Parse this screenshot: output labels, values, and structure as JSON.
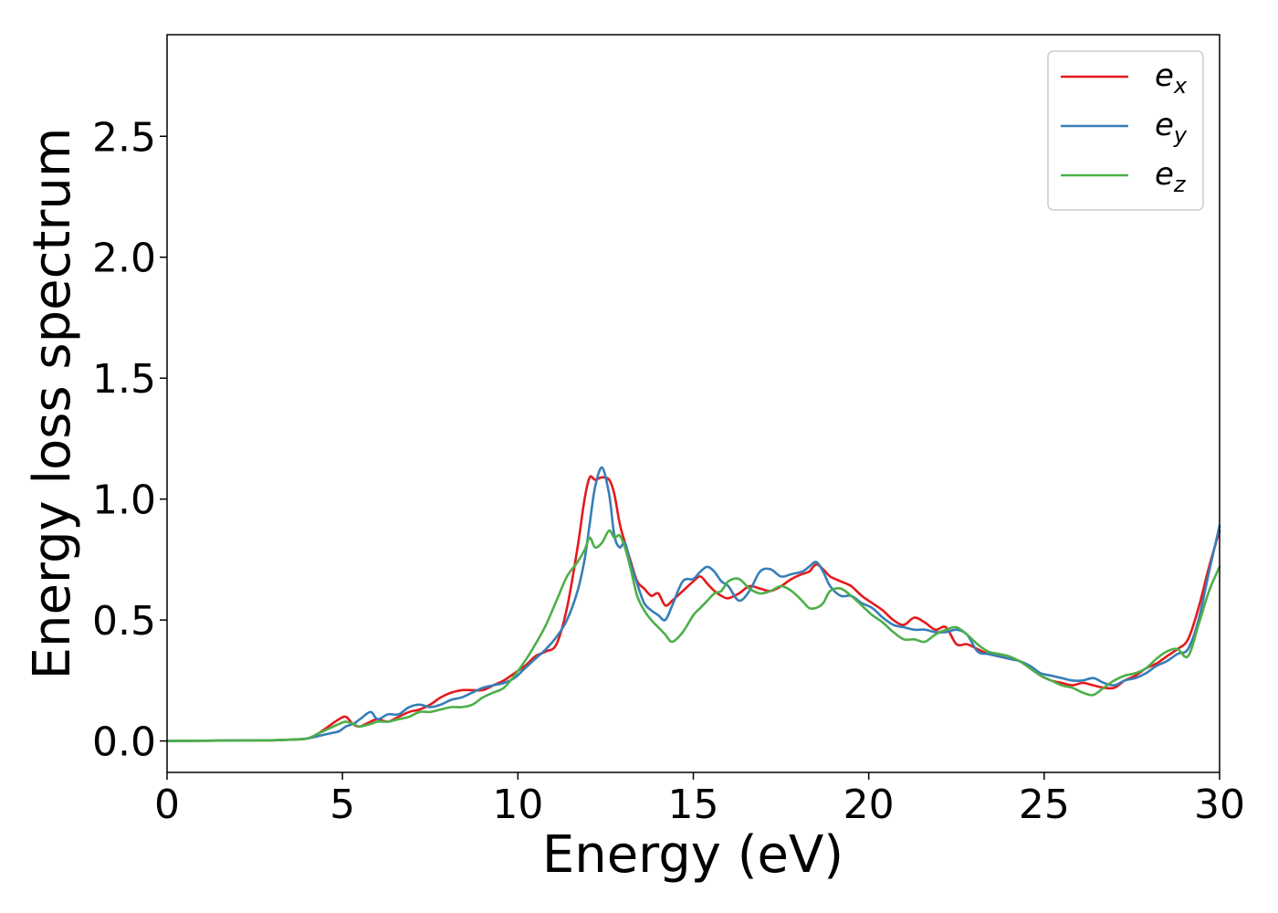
{
  "chart_data": {
    "type": "line",
    "title": "",
    "xlabel": "Energy (eV)",
    "ylabel": "Energy loss spectrum",
    "xlim": [
      0,
      30
    ],
    "ylim": [
      -0.13,
      2.92
    ],
    "xticks": [
      "0",
      "5",
      "10",
      "15",
      "20",
      "25",
      "30"
    ],
    "yticks": [
      "0.0",
      "0.5",
      "1.0",
      "1.5",
      "2.0",
      "2.5"
    ],
    "grid": false,
    "legend_position": "top-right",
    "series": [
      {
        "name": "e_x",
        "legend_base": "e",
        "legend_sub": "x",
        "color": "#e41a1c",
        "x": [
          0,
          2,
          3,
          3.5,
          4,
          4.3,
          4.6,
          4.9,
          5.1,
          5.3,
          5.5,
          5.8,
          6.0,
          6.3,
          6.6,
          6.9,
          7.2,
          7.5,
          7.8,
          8.1,
          8.4,
          8.7,
          9.0,
          9.3,
          9.6,
          9.9,
          10.2,
          10.5,
          10.8,
          11.1,
          11.4,
          11.7,
          11.9,
          12.05,
          12.2,
          12.4,
          12.6,
          12.75,
          12.9,
          13.05,
          13.2,
          13.4,
          13.6,
          13.8,
          14.0,
          14.2,
          14.4,
          14.7,
          15.0,
          15.2,
          15.4,
          15.6,
          15.8,
          16.0,
          16.3,
          16.6,
          16.9,
          17.2,
          17.5,
          17.8,
          18.1,
          18.3,
          18.5,
          18.7,
          18.9,
          19.2,
          19.5,
          19.8,
          20.1,
          20.4,
          20.7,
          21.0,
          21.3,
          21.6,
          21.9,
          22.2,
          22.5,
          22.8,
          23.1,
          23.4,
          23.7,
          24.0,
          24.3,
          24.6,
          24.9,
          25.2,
          25.5,
          25.8,
          26.1,
          26.4,
          26.7,
          27.0,
          27.3,
          27.6,
          27.9,
          28.2,
          28.5,
          28.8,
          29.1,
          29.4,
          29.7,
          30.0
        ],
        "y": [
          0.0,
          0.002,
          0.003,
          0.005,
          0.01,
          0.03,
          0.06,
          0.09,
          0.1,
          0.07,
          0.06,
          0.08,
          0.09,
          0.08,
          0.1,
          0.12,
          0.13,
          0.15,
          0.18,
          0.2,
          0.21,
          0.21,
          0.21,
          0.23,
          0.25,
          0.28,
          0.31,
          0.35,
          0.37,
          0.4,
          0.55,
          0.8,
          1.0,
          1.09,
          1.08,
          1.09,
          1.08,
          1.02,
          0.9,
          0.82,
          0.75,
          0.66,
          0.63,
          0.6,
          0.61,
          0.56,
          0.58,
          0.62,
          0.66,
          0.68,
          0.65,
          0.62,
          0.6,
          0.59,
          0.61,
          0.64,
          0.63,
          0.62,
          0.64,
          0.67,
          0.69,
          0.7,
          0.73,
          0.71,
          0.68,
          0.66,
          0.64,
          0.6,
          0.57,
          0.54,
          0.5,
          0.48,
          0.51,
          0.49,
          0.46,
          0.47,
          0.4,
          0.4,
          0.38,
          0.36,
          0.35,
          0.34,
          0.33,
          0.3,
          0.27,
          0.25,
          0.24,
          0.23,
          0.24,
          0.23,
          0.22,
          0.22,
          0.25,
          0.27,
          0.3,
          0.32,
          0.35,
          0.38,
          0.42,
          0.55,
          0.72,
          0.87
        ]
      },
      {
        "name": "e_y",
        "legend_base": "e",
        "legend_sub": "y",
        "color": "#377eb8",
        "x": [
          0,
          2,
          3,
          3.5,
          4,
          4.3,
          4.6,
          4.9,
          5.1,
          5.3,
          5.5,
          5.8,
          6.0,
          6.3,
          6.6,
          6.9,
          7.2,
          7.5,
          7.8,
          8.1,
          8.4,
          8.7,
          9.0,
          9.3,
          9.6,
          9.9,
          10.2,
          10.5,
          10.8,
          11.1,
          11.4,
          11.7,
          11.9,
          12.05,
          12.2,
          12.4,
          12.6,
          12.75,
          12.9,
          13.05,
          13.2,
          13.4,
          13.6,
          13.8,
          14.0,
          14.2,
          14.4,
          14.7,
          15.0,
          15.2,
          15.4,
          15.6,
          15.8,
          16.0,
          16.3,
          16.6,
          16.9,
          17.2,
          17.5,
          17.8,
          18.1,
          18.3,
          18.5,
          18.7,
          18.9,
          19.2,
          19.5,
          19.8,
          20.1,
          20.4,
          20.7,
          21.0,
          21.3,
          21.6,
          21.9,
          22.2,
          22.5,
          22.8,
          23.1,
          23.4,
          23.7,
          24.0,
          24.3,
          24.6,
          24.9,
          25.2,
          25.5,
          25.8,
          26.1,
          26.4,
          26.7,
          27.0,
          27.3,
          27.6,
          27.9,
          28.2,
          28.5,
          28.8,
          29.1,
          29.4,
          29.7,
          30.0
        ],
        "y": [
          0.0,
          0.002,
          0.003,
          0.005,
          0.01,
          0.02,
          0.03,
          0.04,
          0.06,
          0.07,
          0.09,
          0.12,
          0.09,
          0.11,
          0.11,
          0.14,
          0.15,
          0.14,
          0.15,
          0.17,
          0.18,
          0.2,
          0.22,
          0.23,
          0.24,
          0.26,
          0.3,
          0.34,
          0.38,
          0.43,
          0.5,
          0.62,
          0.75,
          0.9,
          1.05,
          1.13,
          1.02,
          0.85,
          0.8,
          0.82,
          0.74,
          0.65,
          0.57,
          0.54,
          0.52,
          0.5,
          0.56,
          0.66,
          0.67,
          0.7,
          0.72,
          0.7,
          0.66,
          0.64,
          0.58,
          0.62,
          0.7,
          0.71,
          0.68,
          0.69,
          0.7,
          0.72,
          0.74,
          0.7,
          0.64,
          0.6,
          0.6,
          0.57,
          0.55,
          0.51,
          0.48,
          0.47,
          0.46,
          0.46,
          0.45,
          0.45,
          0.46,
          0.44,
          0.37,
          0.36,
          0.35,
          0.34,
          0.33,
          0.31,
          0.28,
          0.27,
          0.26,
          0.25,
          0.25,
          0.26,
          0.24,
          0.23,
          0.25,
          0.26,
          0.28,
          0.31,
          0.33,
          0.36,
          0.38,
          0.5,
          0.7,
          0.89
        ]
      },
      {
        "name": "e_z",
        "legend_base": "e",
        "legend_sub": "z",
        "color": "#4daf4a",
        "x": [
          0,
          2,
          3,
          3.5,
          4,
          4.3,
          4.6,
          4.9,
          5.1,
          5.3,
          5.5,
          5.8,
          6.0,
          6.3,
          6.6,
          6.9,
          7.2,
          7.5,
          7.8,
          8.1,
          8.4,
          8.7,
          9.0,
          9.3,
          9.6,
          9.9,
          10.2,
          10.5,
          10.8,
          11.1,
          11.4,
          11.7,
          11.9,
          12.05,
          12.2,
          12.4,
          12.6,
          12.75,
          12.9,
          13.05,
          13.2,
          13.4,
          13.6,
          13.8,
          14.0,
          14.2,
          14.4,
          14.7,
          15.0,
          15.2,
          15.4,
          15.6,
          15.8,
          16.0,
          16.3,
          16.6,
          16.9,
          17.2,
          17.5,
          17.8,
          18.1,
          18.3,
          18.5,
          18.7,
          18.9,
          19.2,
          19.5,
          19.8,
          20.1,
          20.4,
          20.7,
          21.0,
          21.3,
          21.6,
          21.9,
          22.2,
          22.5,
          22.8,
          23.1,
          23.4,
          23.7,
          24.0,
          24.3,
          24.6,
          24.9,
          25.2,
          25.5,
          25.8,
          26.1,
          26.4,
          26.7,
          27.0,
          27.3,
          27.6,
          27.9,
          28.2,
          28.5,
          28.8,
          29.1,
          29.4,
          29.7,
          30.0
        ],
        "y": [
          0.0,
          0.002,
          0.003,
          0.005,
          0.01,
          0.03,
          0.05,
          0.07,
          0.08,
          0.07,
          0.06,
          0.07,
          0.08,
          0.08,
          0.09,
          0.1,
          0.12,
          0.12,
          0.13,
          0.14,
          0.14,
          0.15,
          0.18,
          0.2,
          0.22,
          0.27,
          0.33,
          0.4,
          0.48,
          0.58,
          0.68,
          0.74,
          0.79,
          0.84,
          0.8,
          0.82,
          0.87,
          0.84,
          0.85,
          0.8,
          0.72,
          0.6,
          0.54,
          0.5,
          0.47,
          0.44,
          0.41,
          0.45,
          0.52,
          0.55,
          0.58,
          0.61,
          0.62,
          0.66,
          0.67,
          0.63,
          0.61,
          0.62,
          0.64,
          0.62,
          0.58,
          0.55,
          0.55,
          0.57,
          0.62,
          0.63,
          0.6,
          0.56,
          0.52,
          0.49,
          0.45,
          0.42,
          0.42,
          0.41,
          0.44,
          0.46,
          0.47,
          0.44,
          0.4,
          0.37,
          0.36,
          0.35,
          0.33,
          0.3,
          0.27,
          0.25,
          0.23,
          0.22,
          0.2,
          0.19,
          0.22,
          0.25,
          0.27,
          0.28,
          0.3,
          0.34,
          0.37,
          0.38,
          0.35,
          0.48,
          0.62,
          0.72
        ]
      }
    ]
  }
}
